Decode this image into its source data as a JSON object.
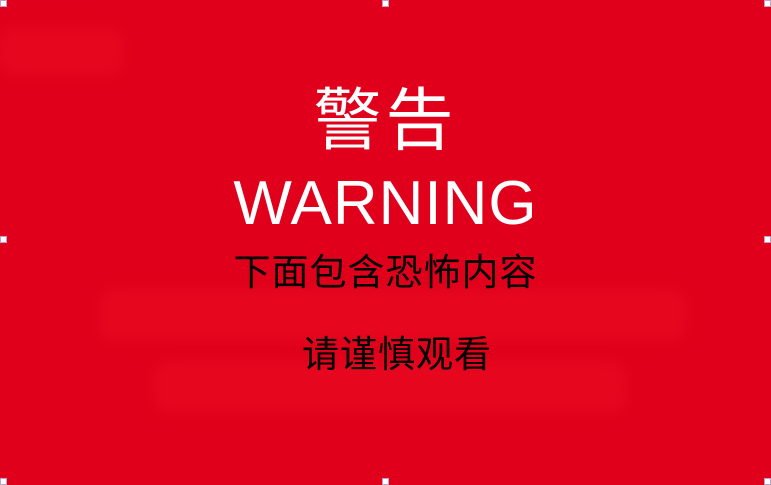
{
  "warning": {
    "title_cn": "警告",
    "title_en": "WARNING",
    "line1": "下面包含恐怖内容",
    "line2": "请谨慎观看"
  },
  "colors": {
    "background": "#e0001b",
    "title_text": "#ffffff",
    "body_text": "#000000"
  }
}
